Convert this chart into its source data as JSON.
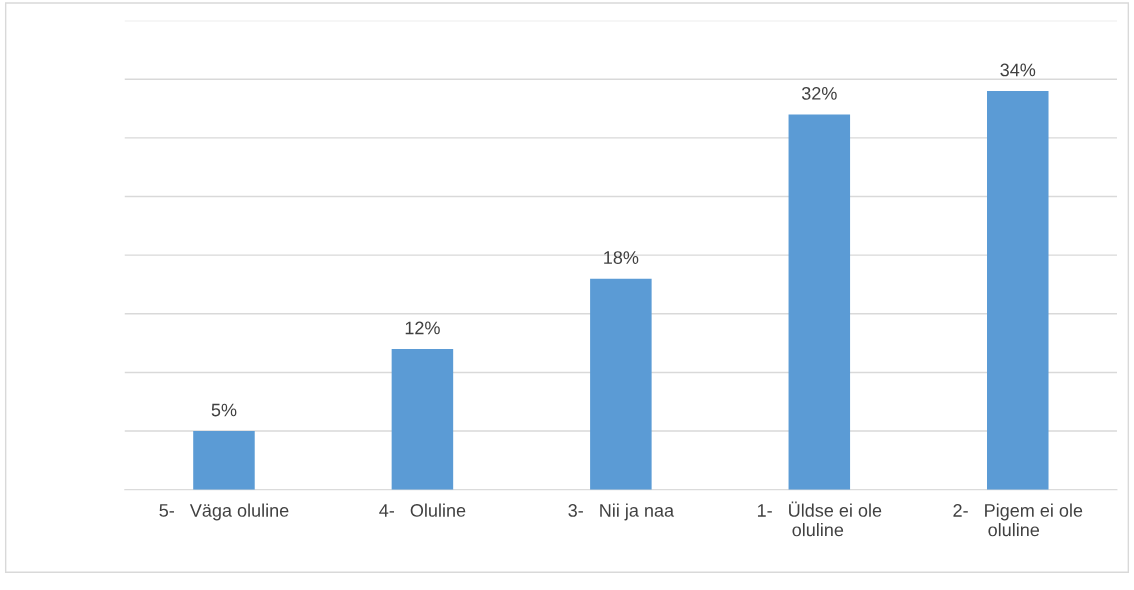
{
  "chart_data": {
    "type": "bar",
    "categories": [
      "5-   Väga oluline",
      "4-   Oluline",
      "3-   Nii ja naa",
      "1-   Üldse ei ole\n       oluline",
      "2-   Pigem ei ole\n       oluline"
    ],
    "values": [
      5,
      12,
      18,
      32,
      34
    ],
    "value_labels": [
      "5%",
      "12%",
      "18%",
      "32%",
      "34%"
    ],
    "color": "#5b9bd5",
    "ylim": [
      0,
      40
    ],
    "yticks": [
      {
        "value": 0,
        "label": null
      },
      {
        "value": 5,
        "label": null
      },
      {
        "value": 10,
        "label": null
      },
      {
        "value": 15,
        "label": null
      },
      {
        "value": 20,
        "label": null
      },
      {
        "value": 25,
        "label": null
      },
      {
        "value": 30,
        "label": null
      },
      {
        "value": 35,
        "label": null
      },
      {
        "value": 40,
        "label": null
      }
    ],
    "grid": "y",
    "tick_labels": "x"
  }
}
